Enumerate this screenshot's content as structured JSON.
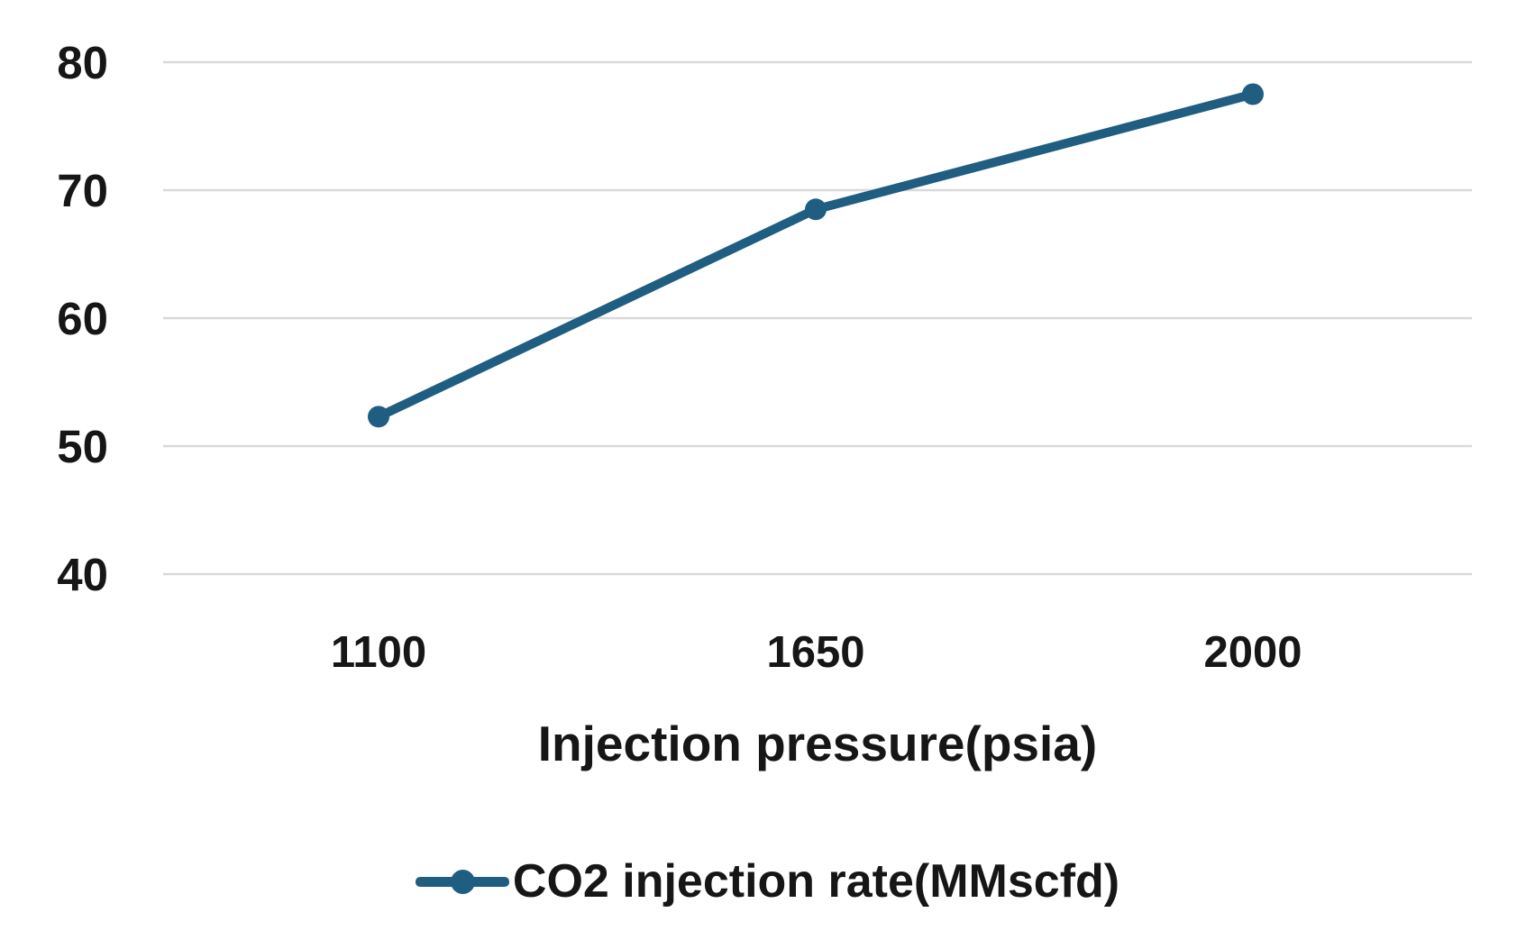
{
  "chart_data": {
    "type": "line",
    "title": "",
    "xlabel": "Injection pressure(psia)",
    "ylabel": "",
    "categories": [
      "1100",
      "1650",
      "2000"
    ],
    "series": [
      {
        "name": "CO2 injection rate(MMscfd)",
        "values": [
          52.3,
          68.5,
          77.5
        ]
      }
    ],
    "y_ticks": [
      40,
      50,
      60,
      70,
      80
    ],
    "ylim": [
      40,
      80
    ],
    "x_axis_type": "categorical",
    "grid": "horizontal",
    "legend_position": "bottom",
    "marker": "circle",
    "colors": {
      "series": "#1f5e80",
      "gridline": "#d9d9d9",
      "text": "#161616",
      "background": "#ffffff"
    }
  }
}
